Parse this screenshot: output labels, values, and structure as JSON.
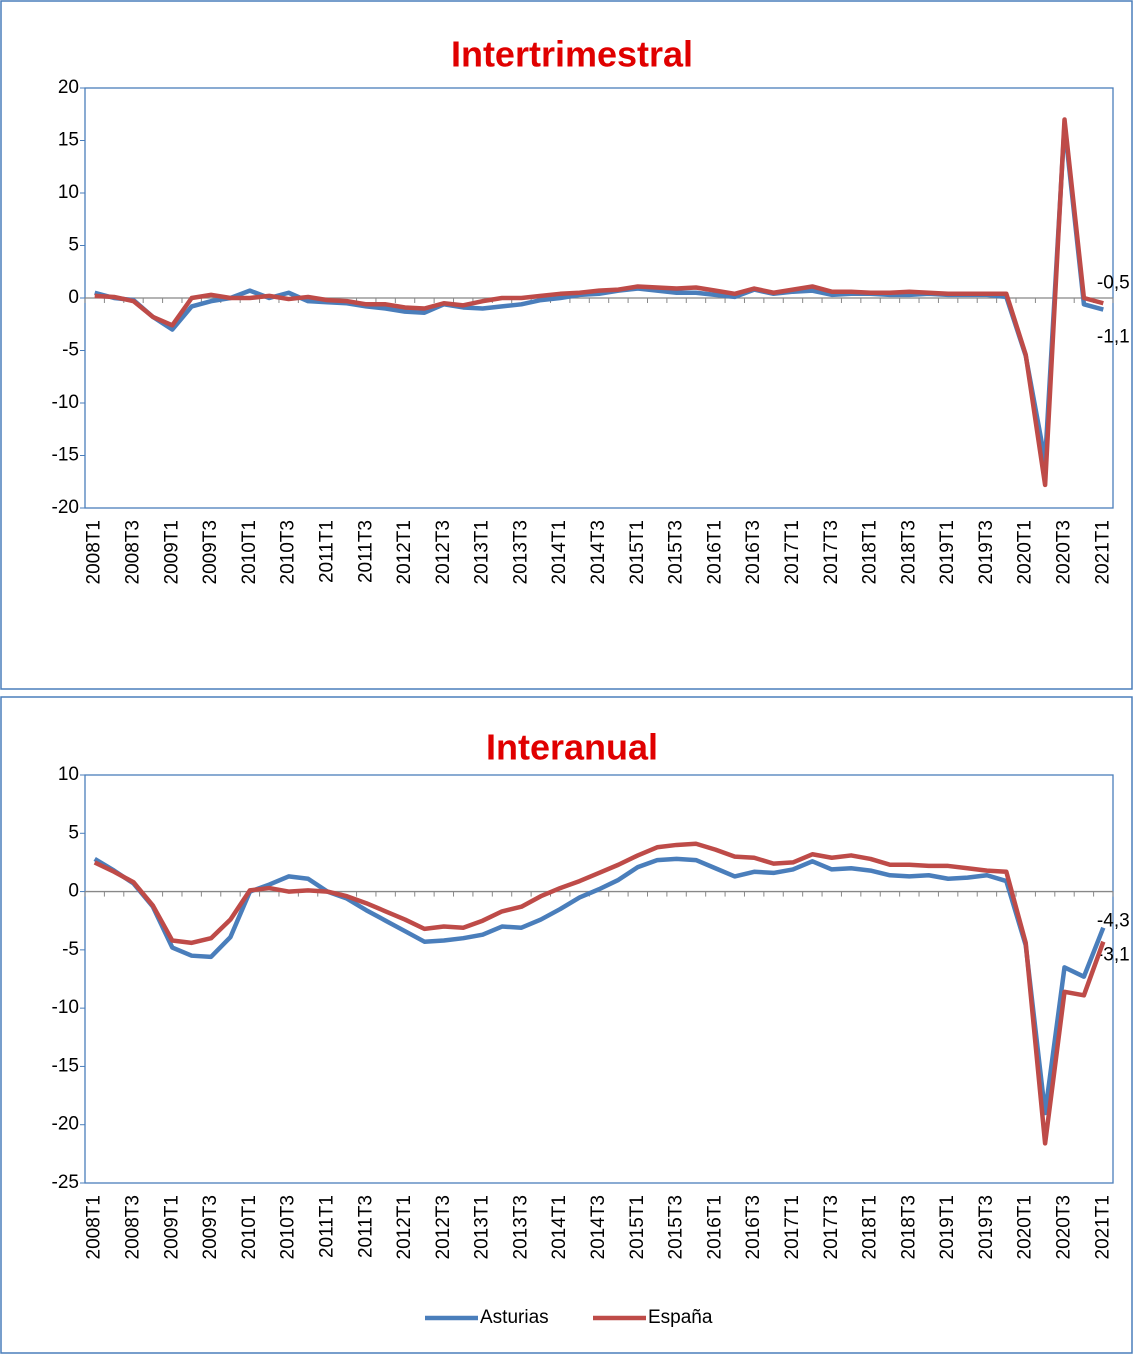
{
  "chart_data": [
    {
      "type": "line",
      "title": "Intertrimestral",
      "categories": [
        "2008T1",
        null,
        "2008T3",
        null,
        "2009T1",
        null,
        "2009T3",
        null,
        "2010T1",
        null,
        "2010T3",
        null,
        "2011T1",
        null,
        "2011T3",
        null,
        "2012T1",
        null,
        "2012T3",
        null,
        "2013T1",
        null,
        "2013T3",
        null,
        "2014T1",
        null,
        "2014T3",
        null,
        "2015T1",
        null,
        "2015T3",
        null,
        "2016T1",
        null,
        "2016T3",
        null,
        "2017T1",
        null,
        "2017T3",
        null,
        "2018T1",
        null,
        "2018T3",
        null,
        "2019T1",
        null,
        "2019T3",
        null,
        "2020T1",
        null,
        "2020T3",
        null,
        "2021T1"
      ],
      "series": [
        {
          "color": "#4a7ebb",
          "values": [
            0.5,
            0.0,
            -0.2,
            -1.8,
            -3.0,
            -0.8,
            -0.3,
            0.0,
            0.7,
            0.0,
            0.5,
            -0.3,
            -0.4,
            -0.5,
            -0.8,
            -1.0,
            -1.3,
            -1.4,
            -0.6,
            -0.9,
            -1.0,
            -0.8,
            -0.6,
            -0.2,
            0.0,
            0.3,
            0.4,
            0.7,
            0.9,
            0.7,
            0.5,
            0.5,
            0.3,
            0.1,
            0.8,
            0.4,
            0.6,
            0.7,
            0.3,
            0.4,
            0.4,
            0.3,
            0.3,
            0.4,
            0.3,
            0.3,
            0.3,
            0.1,
            -5.5,
            -15.5,
            16.5,
            -0.6,
            -1.1
          ],
          "value_labels": [
            null,
            null,
            null,
            null,
            null,
            null,
            null,
            null,
            null,
            null,
            null,
            null,
            null,
            null,
            null,
            null,
            null,
            null,
            null,
            null,
            null,
            null,
            null,
            null,
            null,
            null,
            null,
            null,
            null,
            null,
            null,
            null,
            null,
            null,
            null,
            null,
            null,
            null,
            null,
            null,
            null,
            null,
            null,
            null,
            null,
            null,
            null,
            null,
            null,
            null,
            null,
            null,
            "-1,1"
          ]
        },
        {
          "color": "#be4b48",
          "values": [
            0.2,
            0.1,
            -0.3,
            -1.8,
            -2.6,
            0.0,
            0.3,
            0.0,
            0.0,
            0.2,
            -0.1,
            0.1,
            -0.2,
            -0.3,
            -0.6,
            -0.6,
            -0.9,
            -1.0,
            -0.5,
            -0.7,
            -0.3,
            0.0,
            0.0,
            0.2,
            0.4,
            0.5,
            0.7,
            0.8,
            1.1,
            1.0,
            0.9,
            1.0,
            0.7,
            0.4,
            0.9,
            0.5,
            0.8,
            1.1,
            0.6,
            0.6,
            0.5,
            0.5,
            0.6,
            0.5,
            0.4,
            0.4,
            0.4,
            0.4,
            -5.4,
            -17.8,
            17.0,
            0.0,
            -0.5
          ],
          "value_labels": [
            null,
            null,
            null,
            null,
            null,
            null,
            null,
            null,
            null,
            null,
            null,
            null,
            null,
            null,
            null,
            null,
            null,
            null,
            null,
            null,
            null,
            null,
            null,
            null,
            null,
            null,
            null,
            null,
            null,
            null,
            null,
            null,
            null,
            null,
            null,
            null,
            null,
            null,
            null,
            null,
            null,
            null,
            null,
            null,
            null,
            null,
            null,
            null,
            null,
            null,
            null,
            null,
            "-0,5"
          ]
        }
      ],
      "ylim": [
        -20,
        20
      ],
      "yticks": [
        -20,
        -15,
        -10,
        -5,
        0,
        5,
        10,
        15,
        20
      ],
      "grid": false,
      "legend": false
    },
    {
      "type": "line",
      "title": "Interanual",
      "categories": [
        "2008T1",
        null,
        "2008T3",
        null,
        "2009T1",
        null,
        "2009T3",
        null,
        "2010T1",
        null,
        "2010T3",
        null,
        "2011T1",
        null,
        "2011T3",
        null,
        "2012T1",
        null,
        "2012T3",
        null,
        "2013T1",
        null,
        "2013T3",
        null,
        "2014T1",
        null,
        "2014T3",
        null,
        "2015T1",
        null,
        "2015T3",
        null,
        "2016T1",
        null,
        "2016T3",
        null,
        "2017T1",
        null,
        "2017T3",
        null,
        "2018T1",
        null,
        "2018T3",
        null,
        "2019T1",
        null,
        "2019T3",
        null,
        "2020T1",
        null,
        "2020T3",
        null,
        "2021T1"
      ],
      "series": [
        {
          "name": "Asturias",
          "color": "#4a7ebb",
          "values": [
            2.8,
            1.8,
            0.7,
            -1.3,
            -4.8,
            -5.5,
            -5.6,
            -3.9,
            0.0,
            0.6,
            1.3,
            1.1,
            0.0,
            -0.6,
            -1.6,
            -2.5,
            -3.4,
            -4.3,
            -4.2,
            -4.0,
            -3.7,
            -3.0,
            -3.1,
            -2.4,
            -1.5,
            -0.5,
            0.2,
            1.0,
            2.1,
            2.7,
            2.8,
            2.7,
            2.0,
            1.3,
            1.7,
            1.6,
            1.9,
            2.6,
            1.9,
            2.0,
            1.8,
            1.4,
            1.3,
            1.4,
            1.1,
            1.2,
            1.4,
            0.9,
            -4.6,
            -19.0,
            -6.5,
            -7.3,
            -3.1
          ],
          "value_labels": [
            null,
            null,
            null,
            null,
            null,
            null,
            null,
            null,
            null,
            null,
            null,
            null,
            null,
            null,
            null,
            null,
            null,
            null,
            null,
            null,
            null,
            null,
            null,
            null,
            null,
            null,
            null,
            null,
            null,
            null,
            null,
            null,
            null,
            null,
            null,
            null,
            null,
            null,
            null,
            null,
            null,
            null,
            null,
            null,
            null,
            null,
            null,
            null,
            null,
            null,
            null,
            null,
            "-3,1"
          ]
        },
        {
          "name": "España",
          "color": "#be4b48",
          "values": [
            2.5,
            1.7,
            0.8,
            -1.2,
            -4.2,
            -4.4,
            -4.0,
            -2.4,
            0.1,
            0.3,
            0.0,
            0.1,
            0.0,
            -0.4,
            -1.0,
            -1.7,
            -2.4,
            -3.2,
            -3.0,
            -3.1,
            -2.5,
            -1.7,
            -1.3,
            -0.4,
            0.3,
            0.9,
            1.6,
            2.3,
            3.1,
            3.8,
            4.0,
            4.1,
            3.6,
            3.0,
            2.9,
            2.4,
            2.5,
            3.2,
            2.9,
            3.1,
            2.8,
            2.3,
            2.3,
            2.2,
            2.2,
            2.0,
            1.8,
            1.7,
            -4.4,
            -21.6,
            -8.6,
            -8.9,
            -4.3
          ],
          "value_labels": [
            null,
            null,
            null,
            null,
            null,
            null,
            null,
            null,
            null,
            null,
            null,
            null,
            null,
            null,
            null,
            null,
            null,
            null,
            null,
            null,
            null,
            null,
            null,
            null,
            null,
            null,
            null,
            null,
            null,
            null,
            null,
            null,
            null,
            null,
            null,
            null,
            null,
            null,
            null,
            null,
            null,
            null,
            null,
            null,
            null,
            null,
            null,
            null,
            null,
            null,
            null,
            null,
            "-4,3"
          ]
        }
      ],
      "ylim": [
        -25,
        10
      ],
      "yticks": [
        -25,
        -20,
        -15,
        -10,
        -5,
        0,
        5,
        10
      ],
      "grid": false,
      "legend": "bottom"
    }
  ]
}
